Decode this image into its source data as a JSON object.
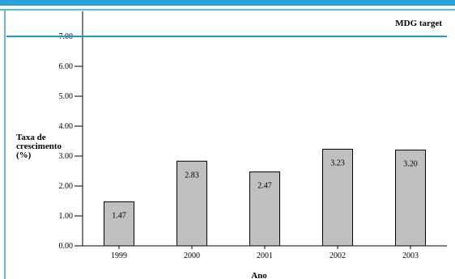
{
  "chart_data": {
    "type": "bar",
    "categories": [
      "1999",
      "2000",
      "2001",
      "2002",
      "2003"
    ],
    "values": [
      1.47,
      2.83,
      2.47,
      3.23,
      3.2
    ],
    "value_labels": [
      "1.47",
      "2.83",
      "2.47",
      "3.23",
      "3.20"
    ],
    "ylabel_lines": [
      "Taxa de",
      "crescimento",
      "(%)"
    ],
    "xlabel": "Ano",
    "ylim": [
      0,
      8
    ],
    "yticks": [
      0,
      1,
      2,
      3,
      4,
      5,
      6,
      7
    ],
    "ytick_labels": [
      "0.00",
      "1.00",
      "2.00",
      "3.00",
      "4.00",
      "5.00",
      "6.00",
      "7.00"
    ],
    "target": {
      "label": "MDG target",
      "value": 7.0
    },
    "grid": false,
    "colors": {
      "bar_fill": "#c0c0c0",
      "bar_stroke": "#000000",
      "target_line": "#1a9ad6",
      "frame": "#29a3d9"
    }
  }
}
